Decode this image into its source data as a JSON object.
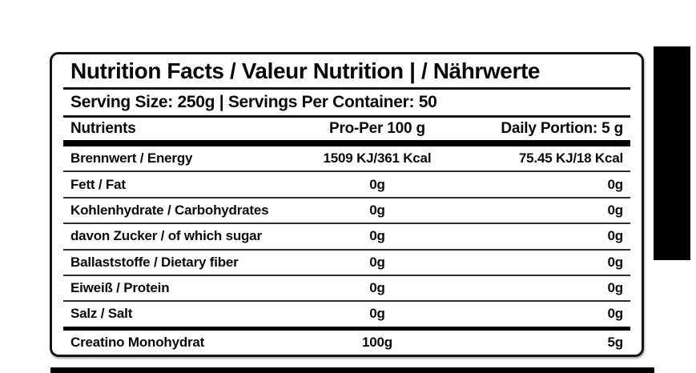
{
  "label": {
    "title": "Nutrition Facts / Valeur Nutrition | / Nährwerte",
    "serving_line": "Serving Size: 250g | Servings Per Container: 50",
    "columns": {
      "nutrients": "Nutrients",
      "per_100g": "Pro-Per 100 g",
      "daily_portion": "Daily Portion: 5 g"
    },
    "rows": [
      {
        "name": "Brennwert / Energy",
        "per_100g": "1509 KJ/361 Kcal",
        "daily_portion": "75.45 KJ/18 Kcal"
      },
      {
        "name": "Fett / Fat",
        "per_100g": "0g",
        "daily_portion": "0g"
      },
      {
        "name": "Kohlenhydrate / Carbohydrates",
        "per_100g": "0g",
        "daily_portion": "0g"
      },
      {
        "name": "davon Zucker / of which sugar",
        "per_100g": "0g",
        "daily_portion": "0g"
      },
      {
        "name": "Ballaststoffe / Dietary fiber",
        "per_100g": "0g",
        "daily_portion": "0g"
      },
      {
        "name": "Eiweiß / Protein",
        "per_100g": "0g",
        "daily_portion": "0g"
      },
      {
        "name": "Salz / Salt",
        "per_100g": "0g",
        "daily_portion": "0g"
      },
      {
        "name": "Creatino Monohydrat",
        "per_100g": "100g",
        "daily_portion": "5g"
      }
    ],
    "colors": {
      "text": "#0a0a0a",
      "border": "#151515",
      "thick_rule": "#000000",
      "thin_rule": "#2e2e2e",
      "background": "#ffffff"
    }
  }
}
